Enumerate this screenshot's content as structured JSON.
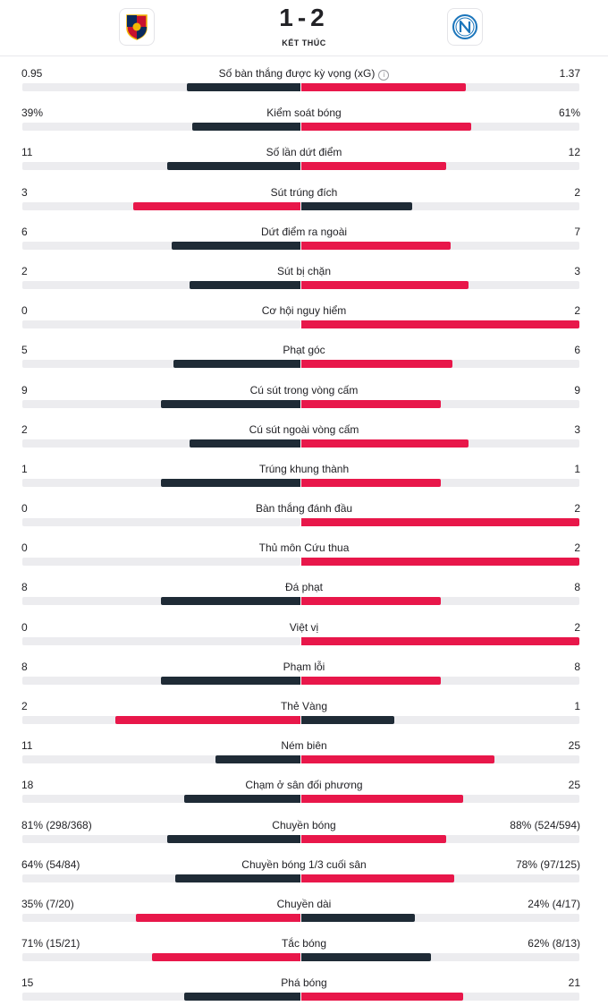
{
  "match": {
    "score": "1-2",
    "status": "KẾT THÚC",
    "home_logo": "genoa-crest-icon",
    "away_logo": "napoli-crest-icon"
  },
  "colors": {
    "dark": "#1f2b36",
    "red": "#e8174a",
    "track": "#ececef"
  },
  "stats": [
    {
      "label": "Số bàn thắng được kỳ vọng (xG)",
      "home": "0.95",
      "away": "1.37",
      "home_share": 0.409,
      "away_share": 0.591,
      "info": true
    },
    {
      "label": "Kiểm soát bóng",
      "home": "39%",
      "away": "61%",
      "home_share": 0.39,
      "away_share": 0.61
    },
    {
      "label": "Số lần dứt điểm",
      "home": "11",
      "away": "12",
      "home_share": 0.478,
      "away_share": 0.522
    },
    {
      "label": "Sút trúng đích",
      "home": "3",
      "away": "2",
      "home_share": 0.6,
      "away_share": 0.4
    },
    {
      "label": "Dứt điểm ra ngoài",
      "home": "6",
      "away": "7",
      "home_share": 0.462,
      "away_share": 0.538
    },
    {
      "label": "Sút bị chặn",
      "home": "2",
      "away": "3",
      "home_share": 0.4,
      "away_share": 0.6
    },
    {
      "label": "Cơ hội nguy hiểm",
      "home": "0",
      "away": "2",
      "home_share": 0.0,
      "away_share": 1.0
    },
    {
      "label": "Phạt góc",
      "home": "5",
      "away": "6",
      "home_share": 0.455,
      "away_share": 0.545
    },
    {
      "label": "Cú sút trong vòng cấm",
      "home": "9",
      "away": "9",
      "home_share": 0.5,
      "away_share": 0.5
    },
    {
      "label": "Cú sút ngoài vòng cấm",
      "home": "2",
      "away": "3",
      "home_share": 0.4,
      "away_share": 0.6
    },
    {
      "label": "Trúng khung thành",
      "home": "1",
      "away": "1",
      "home_share": 0.5,
      "away_share": 0.5
    },
    {
      "label": "Bàn thắng đánh đầu",
      "home": "0",
      "away": "2",
      "home_share": 0.0,
      "away_share": 1.0
    },
    {
      "label": "Thủ môn Cứu thua",
      "home": "0",
      "away": "2",
      "home_share": 0.0,
      "away_share": 1.0
    },
    {
      "label": "Đá phạt",
      "home": "8",
      "away": "8",
      "home_share": 0.5,
      "away_share": 0.5
    },
    {
      "label": "Việt vị",
      "home": "0",
      "away": "2",
      "home_share": 0.0,
      "away_share": 1.0
    },
    {
      "label": "Phạm lỗi",
      "home": "8",
      "away": "8",
      "home_share": 0.5,
      "away_share": 0.5
    },
    {
      "label": "Thẻ Vàng",
      "home": "2",
      "away": "1",
      "home_share": 0.667,
      "away_share": 0.333
    },
    {
      "label": "Ném biên",
      "home": "11",
      "away": "25",
      "home_share": 0.306,
      "away_share": 0.694
    },
    {
      "label": "Chạm ở sân đối phương",
      "home": "18",
      "away": "25",
      "home_share": 0.419,
      "away_share": 0.581
    },
    {
      "label": "Chuyền bóng",
      "home": "81% (298/368)",
      "away": "88% (524/594)",
      "home_share": 0.478,
      "away_share": 0.522
    },
    {
      "label": "Chuyền bóng 1/3 cuối sân",
      "home": "64% (54/84)",
      "away": "78% (97/125)",
      "home_share": 0.45,
      "away_share": 0.55
    },
    {
      "label": "Chuyền dài",
      "home": "35% (7/20)",
      "away": "24% (4/17)",
      "home_share": 0.593,
      "away_share": 0.407
    },
    {
      "label": "Tắc bóng",
      "home": "71% (15/21)",
      "away": "62% (8/13)",
      "home_share": 0.534,
      "away_share": 0.466
    },
    {
      "label": "Phá bóng",
      "home": "15",
      "away": "21",
      "home_share": 0.417,
      "away_share": 0.583
    }
  ]
}
